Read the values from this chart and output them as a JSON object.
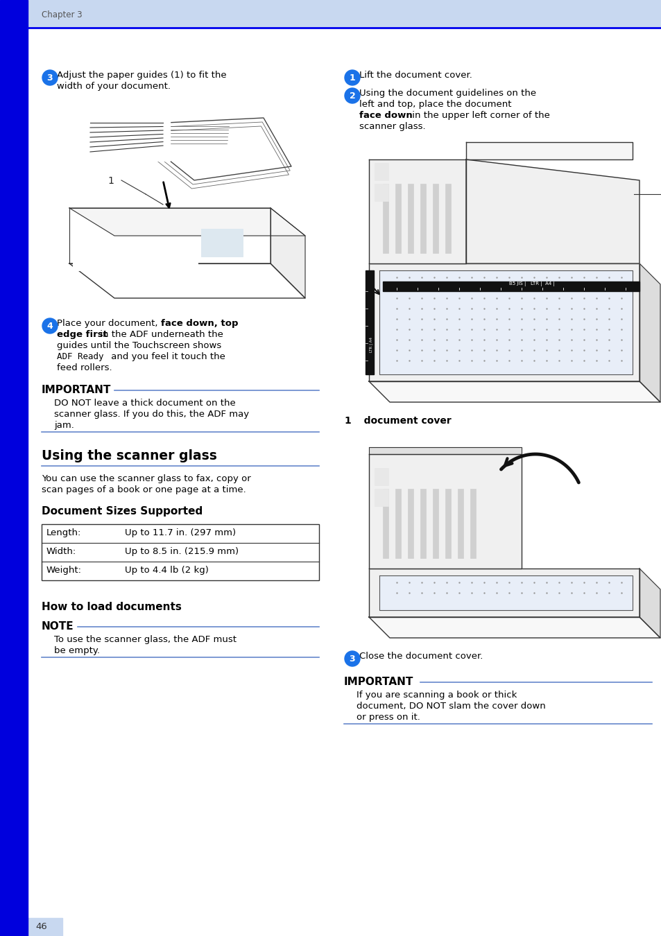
{
  "bg_color": "#ffffff",
  "header_bg": "#c8d8f0",
  "header_bar_color": "#0000ee",
  "side_bar_color": "#0000dd",
  "header_text": "Chapter 3",
  "page_number": "46",
  "page_num_bg": "#c8d8f0",
  "blue_circle_color": "#1a72e8",
  "section_line_color": "#6688cc",
  "body_color": "#000000",
  "step3_line1": "Adjust the paper guides (1) to fit the",
  "step3_line2": "width of your document.",
  "step4_line1a": "Place your document, ",
  "step4_line1b": "face down, top",
  "step4_line2a": "edge first",
  "step4_line2b": " in the ADF underneath the",
  "step4_line3": "guides until the Touchscreen shows",
  "step4_line4a": "ADF Ready",
  "step4_line4b": " and you feel it touch the",
  "step4_line5": "feed rollers.",
  "important1_title": "IMPORTANT",
  "important1_line1": "DO NOT leave a thick document on the",
  "important1_line2": "scanner glass. If you do this, the ADF may",
  "important1_line3": "jam.",
  "section_title": "Using the scanner glass",
  "section_line1": "You can use the scanner glass to fax, copy or",
  "section_line2": "scan pages of a book or one page at a time.",
  "doc_sizes_title": "Document Sizes Supported",
  "table_rows": [
    [
      "Length:",
      "Up to 11.7 in. (297 mm)"
    ],
    [
      "Width:",
      "Up to 8.5 in. (215.9 mm)"
    ],
    [
      "Weight:",
      "Up to 4.4 lb (2 kg)"
    ]
  ],
  "how_to_title": "How to load documents",
  "note_title": "NOTE",
  "note_line1": "To use the scanner glass, the ADF must",
  "note_line2": "be empty.",
  "right_step1": "Lift the document cover.",
  "right_step2_line1": "Using the document guidelines on the",
  "right_step2_line2": "left and top, place the document",
  "right_step2_line3a": "face down",
  "right_step2_line3b": " in the upper left corner of the",
  "right_step2_line4": "scanner glass.",
  "doc_cover_label_num": "1",
  "doc_cover_label_text": "   document cover",
  "right_step3": "Close the document cover.",
  "important2_title": "IMPORTANT",
  "important2_line1": "If you are scanning a book or thick",
  "important2_line2": "document, DO NOT slam the cover down",
  "important2_line3": "or press on it."
}
